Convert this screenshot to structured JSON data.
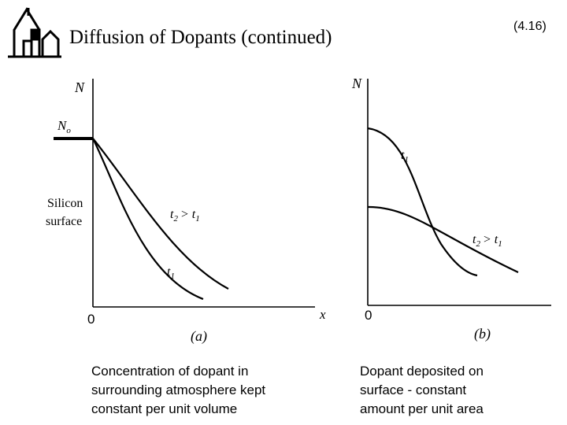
{
  "header": {
    "title": "Diffusion of Dopants (continued)",
    "equation": "(4.16)"
  },
  "panels": [
    {
      "y_label": "N",
      "surface_concentration": [
        "N",
        "o"
      ],
      "surface_label": [
        "Silicon",
        "surface"
      ],
      "curve_labels": [
        [
          "t",
          "2",
          "> t",
          "1"
        ],
        [
          "t",
          "1"
        ]
      ],
      "origin": "0",
      "x_label": "x",
      "panel_label": "(a)",
      "caption": [
        "Concentration of dopant in",
        "surrounding atmosphere kept",
        "constant per unit volume"
      ]
    },
    {
      "y_label": "N",
      "curve_labels": [
        [
          "t",
          "1"
        ],
        [
          "t",
          "2",
          "> t",
          "1"
        ]
      ],
      "origin": "0",
      "panel_label": "(b)",
      "caption": [
        "Dopant deposited on",
        "surface - constant",
        "amount per unit area"
      ]
    }
  ]
}
